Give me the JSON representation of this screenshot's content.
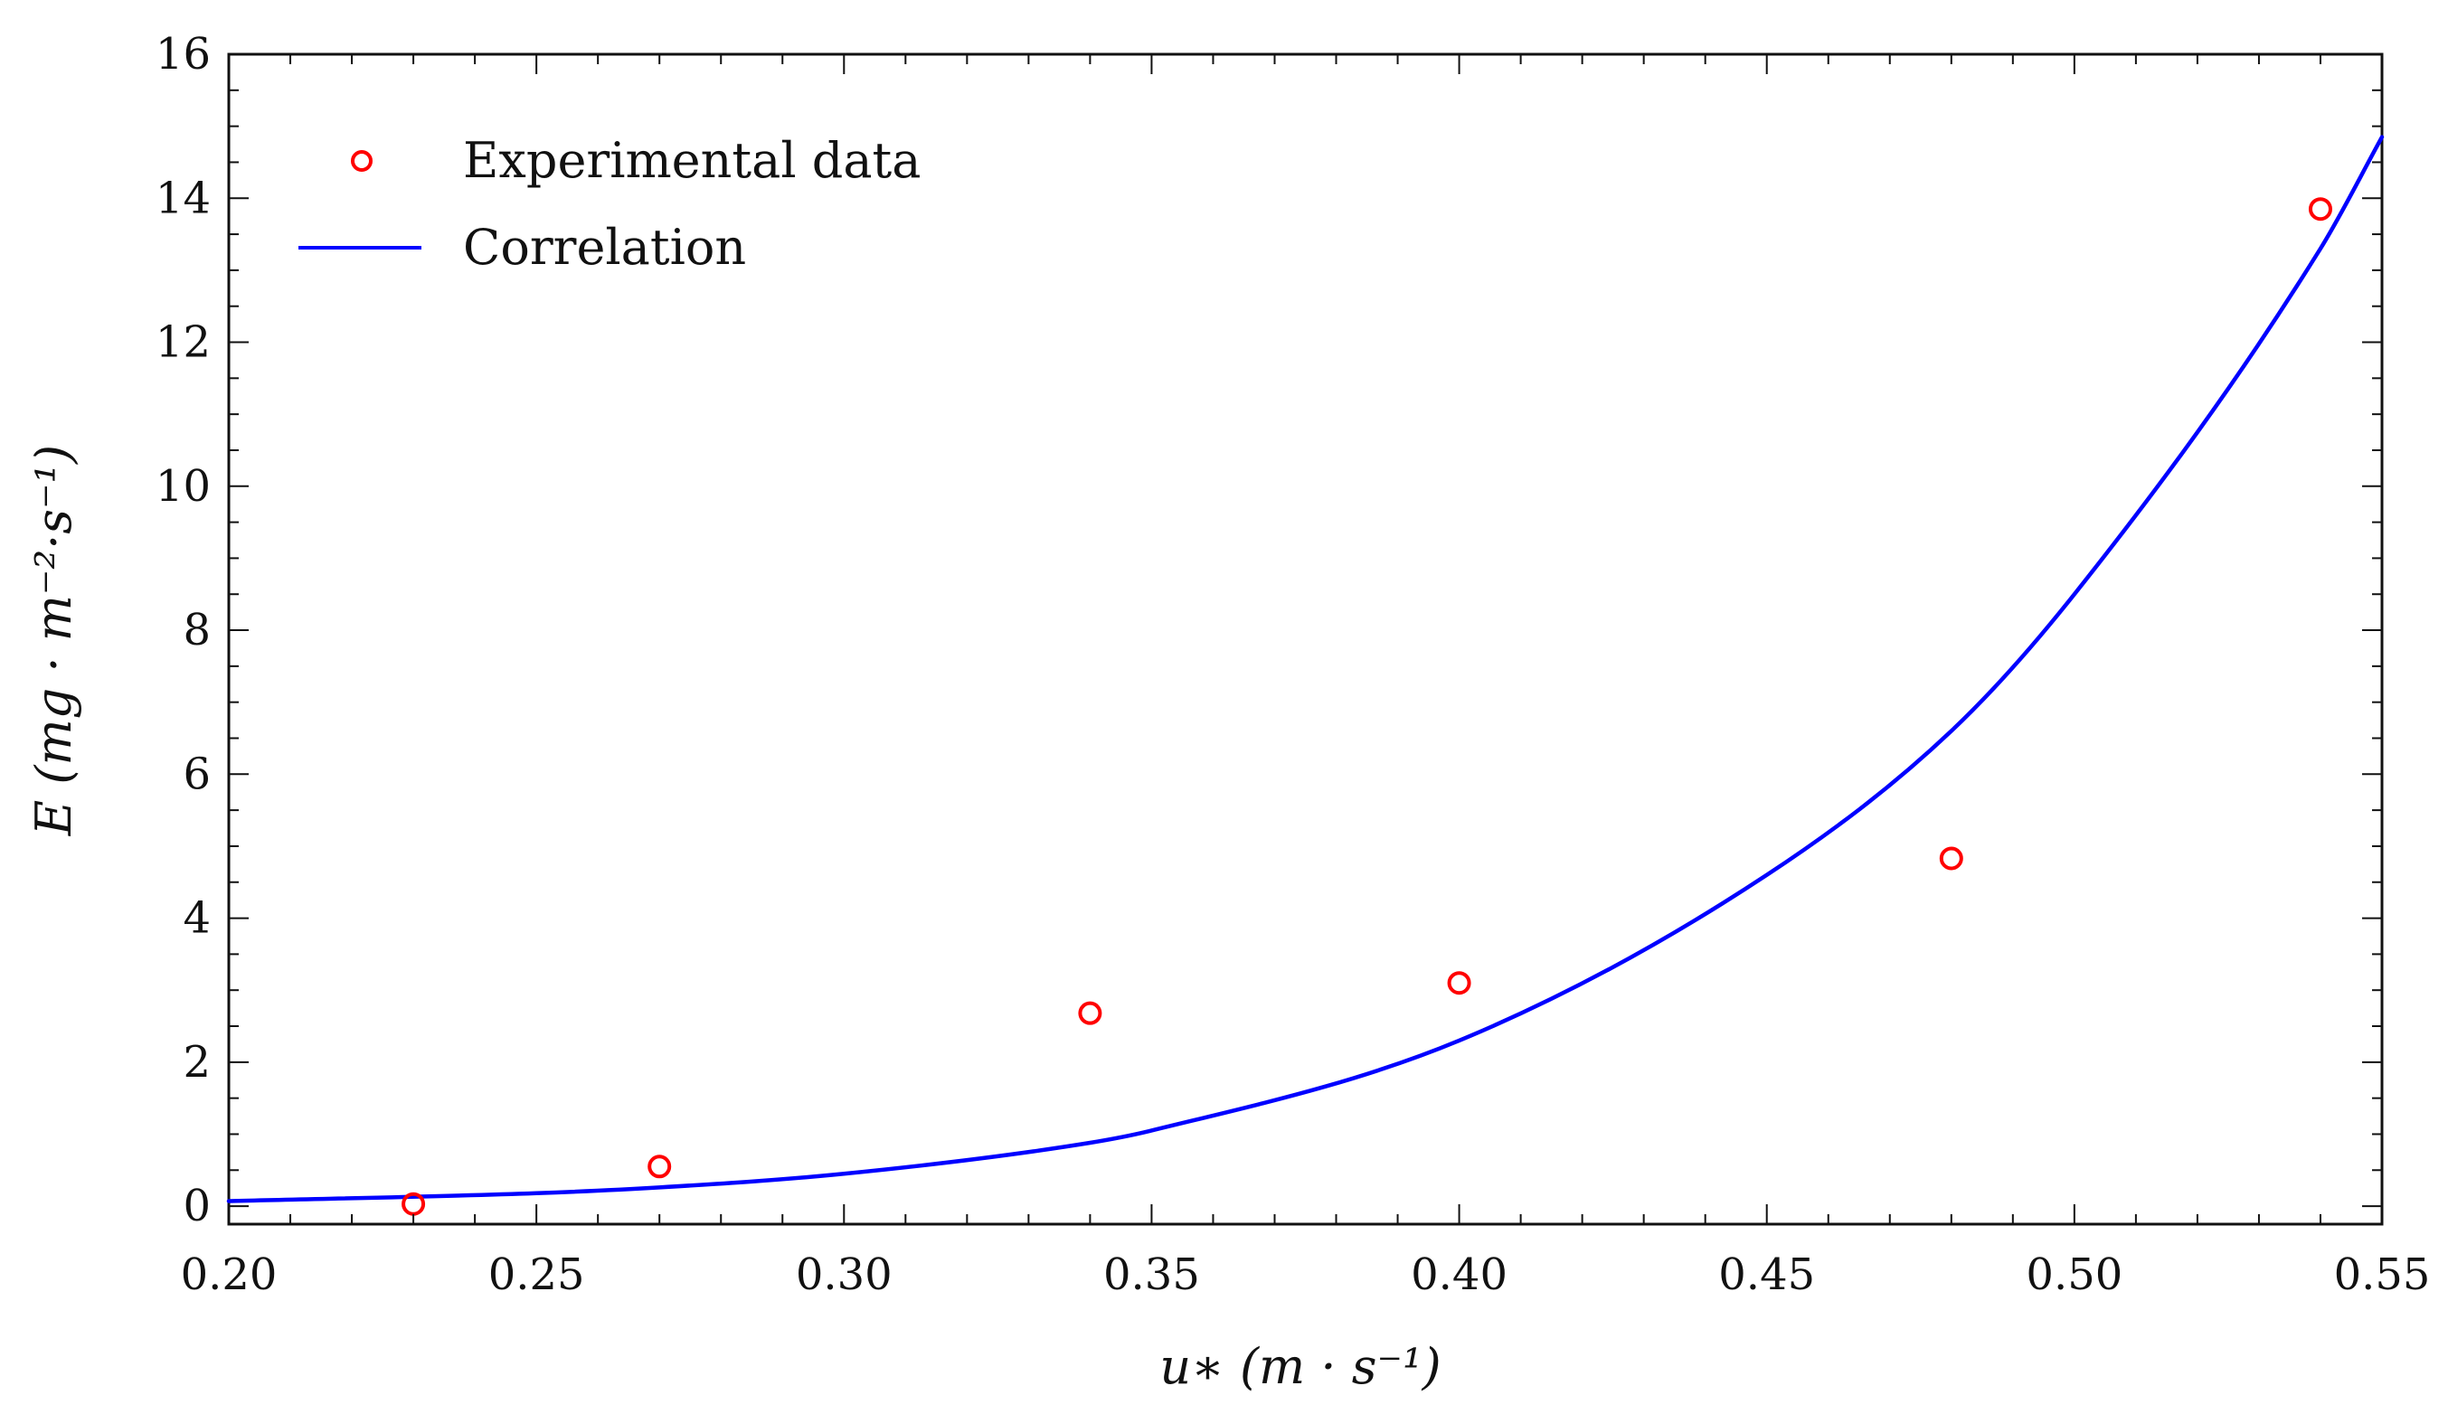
{
  "chart_data": {
    "type": "scatter",
    "title": "",
    "xlabel": "u∗  (m · s⁻¹)",
    "ylabel": "E (mg · m⁻²·s⁻¹)",
    "xlim": [
      0.2,
      0.55
    ],
    "ylim": [
      -0.25,
      16
    ],
    "xticks": [
      0.2,
      0.25,
      0.3,
      0.35,
      0.4,
      0.45,
      0.5,
      0.55
    ],
    "xtick_labels": [
      "0.20",
      "0.25",
      "0.30",
      "0.35",
      "0.40",
      "0.45",
      "0.50",
      "0.55"
    ],
    "yticks": [
      0,
      2,
      4,
      6,
      8,
      10,
      12,
      14,
      16
    ],
    "ytick_labels": [
      "0",
      "2",
      "4",
      "6",
      "8",
      "10",
      "12",
      "14",
      "16"
    ],
    "grid": false,
    "legend": {
      "placement": "top-left",
      "entries": [
        "Experimental data",
        "Correlation"
      ]
    },
    "series": [
      {
        "name": "Experimental data",
        "kind": "scatter",
        "marker": "open-circle",
        "color": "#ff0000",
        "x": [
          0.23,
          0.27,
          0.34,
          0.4,
          0.48,
          0.54
        ],
        "y": [
          0.03,
          0.55,
          2.68,
          3.1,
          4.83,
          13.85
        ]
      },
      {
        "name": "Correlation",
        "kind": "line",
        "color": "#0000ff",
        "x": [
          0.2,
          0.25,
          0.27,
          0.3,
          0.34,
          0.35,
          0.4,
          0.45,
          0.48,
          0.5,
          0.54,
          0.55
        ],
        "y": [
          0.07,
          0.18,
          0.26,
          0.45,
          0.88,
          1.05,
          2.3,
          4.6,
          6.6,
          8.5,
          13.3,
          14.85
        ]
      }
    ]
  }
}
